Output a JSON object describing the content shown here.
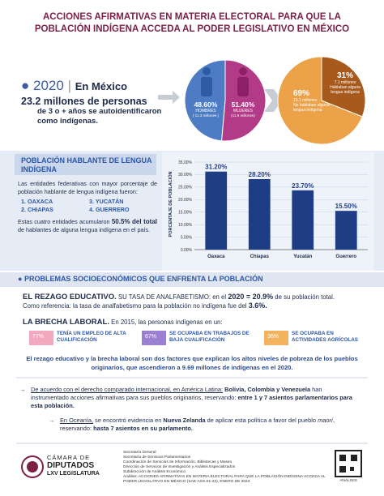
{
  "header": {
    "title_line1": "ACCIONES AFIRMATIVAS EN MATERIA ELECTORAL PARA QUE LA",
    "title_line2": "POBLACIÓN INDÍGENA ACCEDA AL PODER LEGISLATIVO EN MÉXICO"
  },
  "summary": {
    "year": "2020",
    "country": "En México",
    "headline": "23.2 millones de personas",
    "detail": "de 3 o + años se autoidentificaron como indígenas."
  },
  "sex_chart": {
    "type": "pie",
    "categories": [
      "HOMBRES",
      "MUJERES"
    ],
    "values": [
      48.6,
      51.4
    ],
    "value_labels": [
      "48.60%",
      "51.40%"
    ],
    "notes": [
      "( 11.3 millones )",
      "(11.9 millones)"
    ],
    "colors": [
      "#4d7cc4",
      "#b23a86"
    ]
  },
  "language_pie": {
    "type": "pie",
    "categories": [
      "No hablaban alguna lengua indígena",
      "Hablaban alguna lengua indígena"
    ],
    "values": [
      69,
      31
    ],
    "value_labels": [
      "69%",
      "31%"
    ],
    "notes": [
      "16.1 millones",
      "7.1 millones"
    ],
    "colors": [
      "#eba248",
      "#a85a1c"
    ]
  },
  "speakers": {
    "title": "POBLACIÓN HABLANTE DE LENGUA INDÍGENA",
    "intro": "Las entidades federativas con mayor porcentaje de población hablante de lengua indígena fueron:",
    "states": [
      "1. OAXACA",
      "2. CHIAPAS",
      "3. YUCATÁN",
      "4. GUERRERO"
    ],
    "conclusion_pre": "Estas cuatro entidades acumularon",
    "conclusion_bold": "50.5% del total",
    "conclusion_post": "de hablantes de alguna lengua indígena en el país."
  },
  "speakers_chart": {
    "type": "bar",
    "ylabel": "PORCENTAJE DE POBLACIÓN",
    "categories": [
      "Oaxaca",
      "Chiapas",
      "Yucatán",
      "Guerrero"
    ],
    "values": [
      31.2,
      28.2,
      23.7,
      15.5
    ],
    "value_labels": [
      "31.20%",
      "28.20%",
      "23.70%",
      "15.50%"
    ],
    "color": "#1f3d85",
    "ylim": [
      0,
      35
    ],
    "yticks": [
      {
        "value": 0,
        "label": "0.00%"
      },
      {
        "value": 5,
        "label": "5.00%"
      },
      {
        "value": 10,
        "label": "10.00%"
      },
      {
        "value": 15,
        "label": "15.00%"
      },
      {
        "value": 20,
        "label": "20.00%"
      },
      {
        "value": 25,
        "label": "25.00%"
      },
      {
        "value": 30,
        "label": "30.00%"
      },
      {
        "value": 35,
        "label": "35.00%"
      }
    ],
    "grid": true
  },
  "problems": {
    "title": "PROBLEMAS SOCIOECONÓMICOS QUE ENFRENTA LA POBLACIÓN",
    "education": {
      "label": "EL REZAGO EDUCATIVO.",
      "text1": "SU TASA DE ANALFABETISMO: en el",
      "bold1": "2020 = 20.9%",
      "text2": "de su población total.",
      "text3": "Como referencia: la tasa de analfabetismo para la población no indígena fue del",
      "bold2": "3.6%."
    },
    "labor": {
      "label": "LA BRECHA LABORAL.",
      "text": "En 2015, las personas indígenas en un:",
      "items": [
        {
          "value": "77%",
          "text": "TENÍA UN EMPLEO DE ALTA CUALIFICACIÓN"
        },
        {
          "value": "67%",
          "text": "SE OCUPABA EN TRABAJOS DE BAJA CUALIFICACIÓN"
        },
        {
          "value": "36%",
          "text": "SE OCUPABA EN ACTIVIDADES AGRÍCOLAS"
        }
      ]
    },
    "conclusion": "El rezago educativo y la brecha laboral son dos factores que explican los altos niveles de pobreza de los pueblos originarios, que ascendieron a 9.69 millones de indígenas en el 2020."
  },
  "comparative": {
    "latam": {
      "pre": "De acuerdo con el derecho comparado internacional, en América Latina:",
      "bold1": "Bolivia, Colombia y Venezuela",
      "mid": "han instrumentado acciones afirmativas para sus pueblos originarios, reservando:",
      "bold2": "entre 1 y 7 asientos parlamentarios para esta población."
    },
    "oceania": {
      "pre": "En Oceanía,",
      "mid": "se encontró evidencia en",
      "bold1": "Nueva Zelanda",
      "post": "de aplicar esta política a favor del pueblo",
      "italic": "maorí",
      "end": ", reservando:",
      "bold2": "hasta 7 asientos en su parlamento."
    }
  },
  "footer": {
    "logo_line1": "CÁMARA DE",
    "logo_line2": "DIPUTADOS",
    "logo_line3": "LXV LEGISLATURA",
    "credits": [
      "Secretaría General",
      "Secretaría de Servicios Parlamentarios",
      "Coordinación de Servicios de Información, Bibliotecas y Museo",
      "Dirección de Servicios de Investigación y Análisis Especializados",
      "Subdirección de Análisis Económico",
      "Análisis: ACCIONES AFIRMATIVAS EN MATERIA ELECTORAL PARA QUE LA POBLACIÓN INDÍGENA ACCEDA AL PODER LEGISLATIVO EN MÉXICO (SAE-ASS-01-23), ENERO DE 2023"
    ],
    "qr_label": "ANÁLISIS"
  }
}
